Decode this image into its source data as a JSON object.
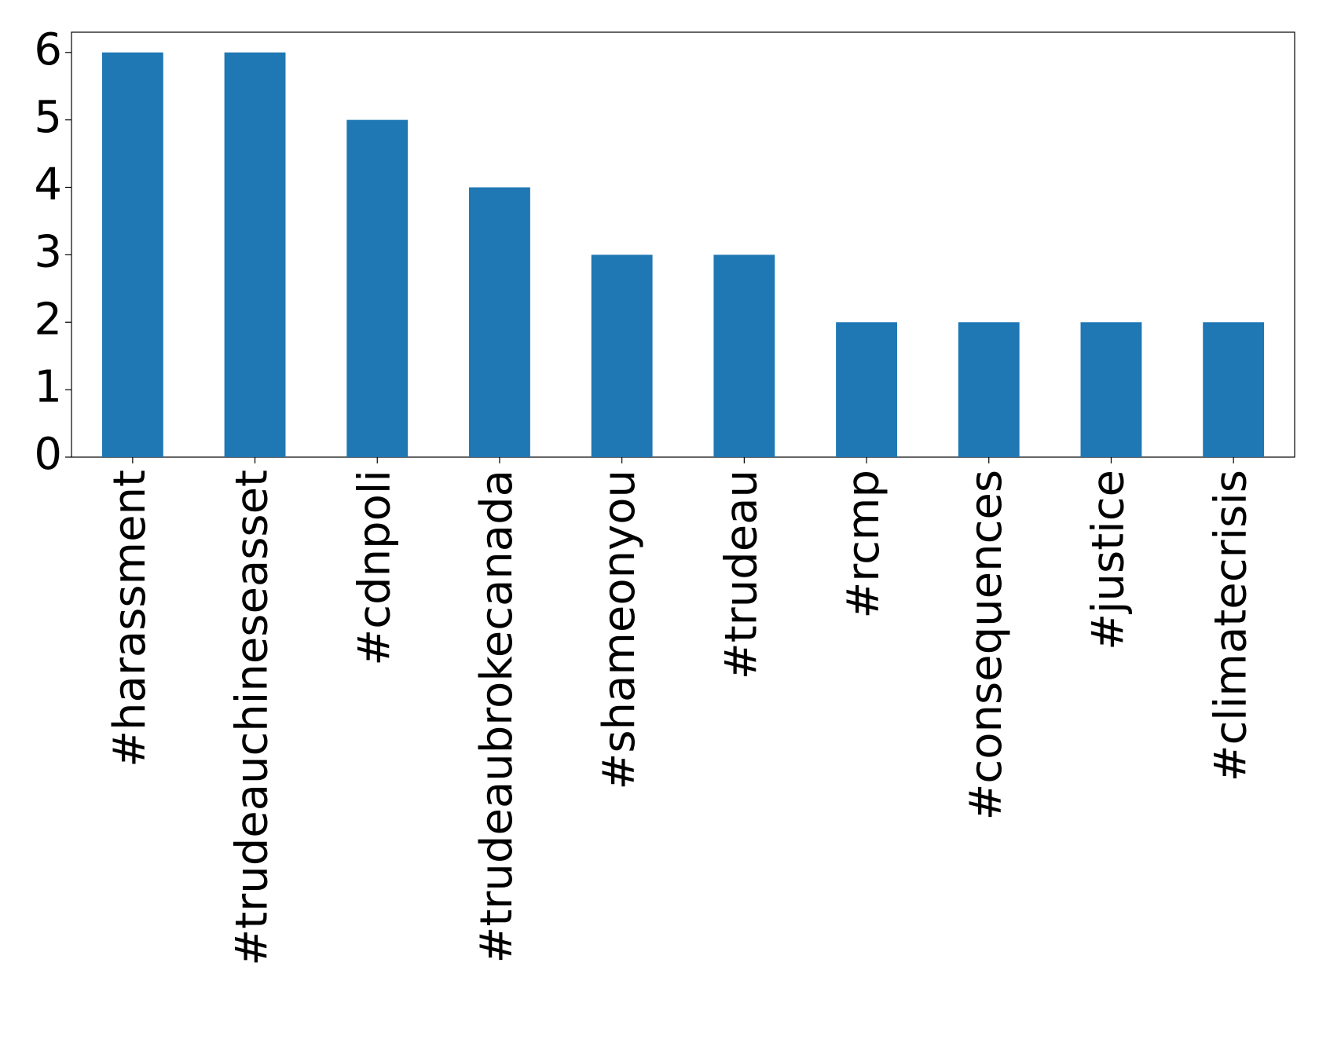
{
  "chart_data": {
    "type": "bar",
    "categories": [
      "#harassment",
      "#trudeauchineseasset",
      "#cdnpoli",
      "#trudeaubrokecanada",
      "#shameonyou",
      "#trudeau",
      "#rcmp",
      "#consequences",
      "#justice",
      "#climatecrisis"
    ],
    "values": [
      6,
      6,
      5,
      4,
      3,
      3,
      2,
      2,
      2,
      2
    ],
    "color": "#1f77b4",
    "ylim": [
      0,
      6.3
    ],
    "yticks": [
      0,
      1,
      2,
      3,
      4,
      5,
      6
    ],
    "grid": false
  }
}
